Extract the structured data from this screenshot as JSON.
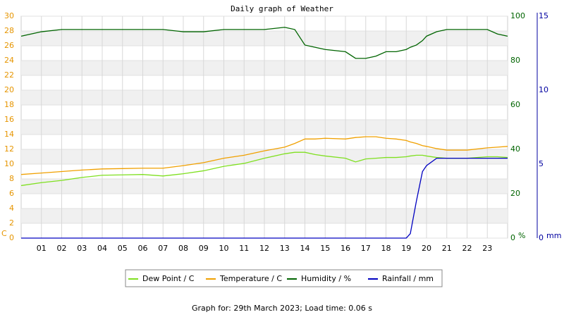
{
  "chart_data": {
    "type": "line",
    "title": "Daily graph of Weather",
    "x": [
      0,
      1,
      2,
      3,
      4,
      5,
      6,
      7,
      8,
      9,
      10,
      11,
      12,
      13,
      13.5,
      14,
      14.5,
      15,
      16,
      16.5,
      17,
      17.5,
      18,
      18.5,
      19,
      19.2,
      19.5,
      19.8,
      20,
      20.5,
      21,
      22,
      23,
      23.5,
      24
    ],
    "xlim": [
      0,
      24
    ],
    "xticks": [
      {
        "value": 1,
        "label": "01"
      },
      {
        "value": 2,
        "label": "02"
      },
      {
        "value": 3,
        "label": "03"
      },
      {
        "value": 4,
        "label": "04"
      },
      {
        "value": 5,
        "label": "05"
      },
      {
        "value": 6,
        "label": "06"
      },
      {
        "value": 7,
        "label": "07"
      },
      {
        "value": 8,
        "label": "08"
      },
      {
        "value": 9,
        "label": "09"
      },
      10,
      11,
      12,
      13,
      14,
      15,
      16,
      17,
      18,
      19,
      20,
      21,
      22,
      23
    ],
    "ylim": [
      0,
      30
    ],
    "yticks": [
      0,
      2,
      4,
      6,
      8,
      10,
      12,
      14,
      16,
      18,
      20,
      22,
      24,
      26,
      28,
      30
    ],
    "y_label": "C",
    "y_color": "#e69500",
    "y2lim": [
      0,
      100
    ],
    "y2ticks": [
      0,
      20,
      40,
      60,
      80,
      100
    ],
    "y2_label": "%",
    "y2_color": "#006400",
    "y3lim": [
      0,
      15
    ],
    "y3ticks": [
      0,
      5,
      10,
      15
    ],
    "y3_label": "mm",
    "y3_color": "#0000a0",
    "grid": true,
    "series": [
      {
        "name": "Dew Point / C",
        "color": "#7fe020",
        "axis": "y",
        "values": [
          7.1,
          7.5,
          7.8,
          8.2,
          8.5,
          8.55,
          8.6,
          8.4,
          8.7,
          9.1,
          9.7,
          10.1,
          10.8,
          11.4,
          11.6,
          11.6,
          11.3,
          11.1,
          10.8,
          10.3,
          10.7,
          10.8,
          10.9,
          10.9,
          11.0,
          11.1,
          11.2,
          11.2,
          11.1,
          10.9,
          10.8,
          10.8,
          11.0,
          11.0,
          10.9
        ]
      },
      {
        "name": "Temperature / C",
        "color": "#f0a000",
        "axis": "y",
        "values": [
          8.6,
          8.8,
          9.0,
          9.2,
          9.35,
          9.4,
          9.45,
          9.45,
          9.8,
          10.2,
          10.8,
          11.2,
          11.8,
          12.3,
          12.8,
          13.4,
          13.4,
          13.5,
          13.4,
          13.6,
          13.7,
          13.7,
          13.5,
          13.4,
          13.2,
          13.0,
          12.8,
          12.5,
          12.4,
          12.1,
          11.9,
          11.9,
          12.2,
          12.3,
          12.4
        ]
      },
      {
        "name": "Humidity / %",
        "color": "#006400",
        "axis": "y2",
        "values": [
          91,
          93,
          94,
          94,
          94,
          94,
          94,
          94,
          93,
          93,
          94,
          94,
          94,
          95,
          94,
          87,
          86,
          85,
          84,
          81,
          81,
          82,
          84,
          84,
          85,
          86,
          87,
          89,
          91,
          93,
          94,
          94,
          94,
          92,
          91
        ]
      },
      {
        "name": "Rainfall / mm",
        "color": "#0000c0",
        "axis": "y3",
        "values": [
          0,
          0,
          0,
          0,
          0,
          0,
          0,
          0,
          0,
          0,
          0,
          0,
          0,
          0,
          0,
          0,
          0,
          0,
          0,
          0,
          0,
          0,
          0,
          0,
          0,
          0.3,
          2.5,
          4.5,
          4.9,
          5.4,
          5.4,
          5.4,
          5.4,
          5.4,
          5.4
        ]
      }
    ],
    "footer": "Graph for: 29th March 2023; Load time: 0.06 s"
  }
}
